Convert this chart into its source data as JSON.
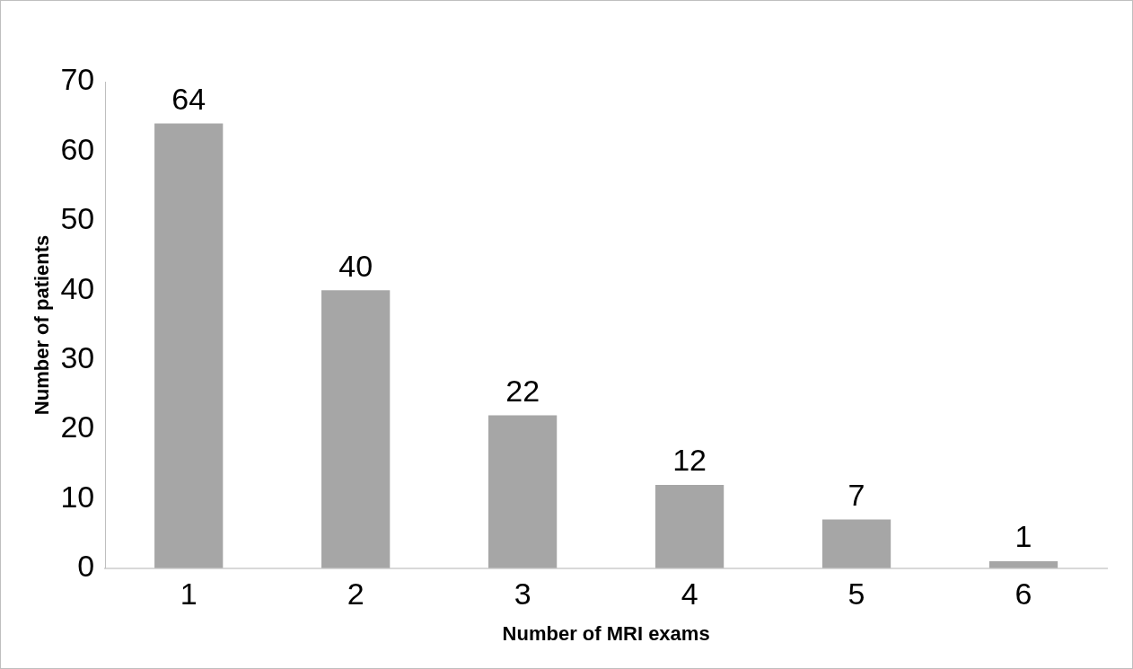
{
  "chart_data": {
    "type": "bar",
    "xlabel": "Number of MRI exams",
    "ylabel": "Number of patients",
    "categories": [
      "1",
      "2",
      "3",
      "4",
      "5",
      "6"
    ],
    "values": [
      64,
      40,
      22,
      12,
      7,
      1
    ],
    "color": "#a6a6a6",
    "ylim": [
      0,
      70
    ],
    "yticks": [
      0,
      10,
      20,
      30,
      40,
      50,
      60,
      70
    ],
    "grid": false,
    "legend": false,
    "data_labels": true
  }
}
